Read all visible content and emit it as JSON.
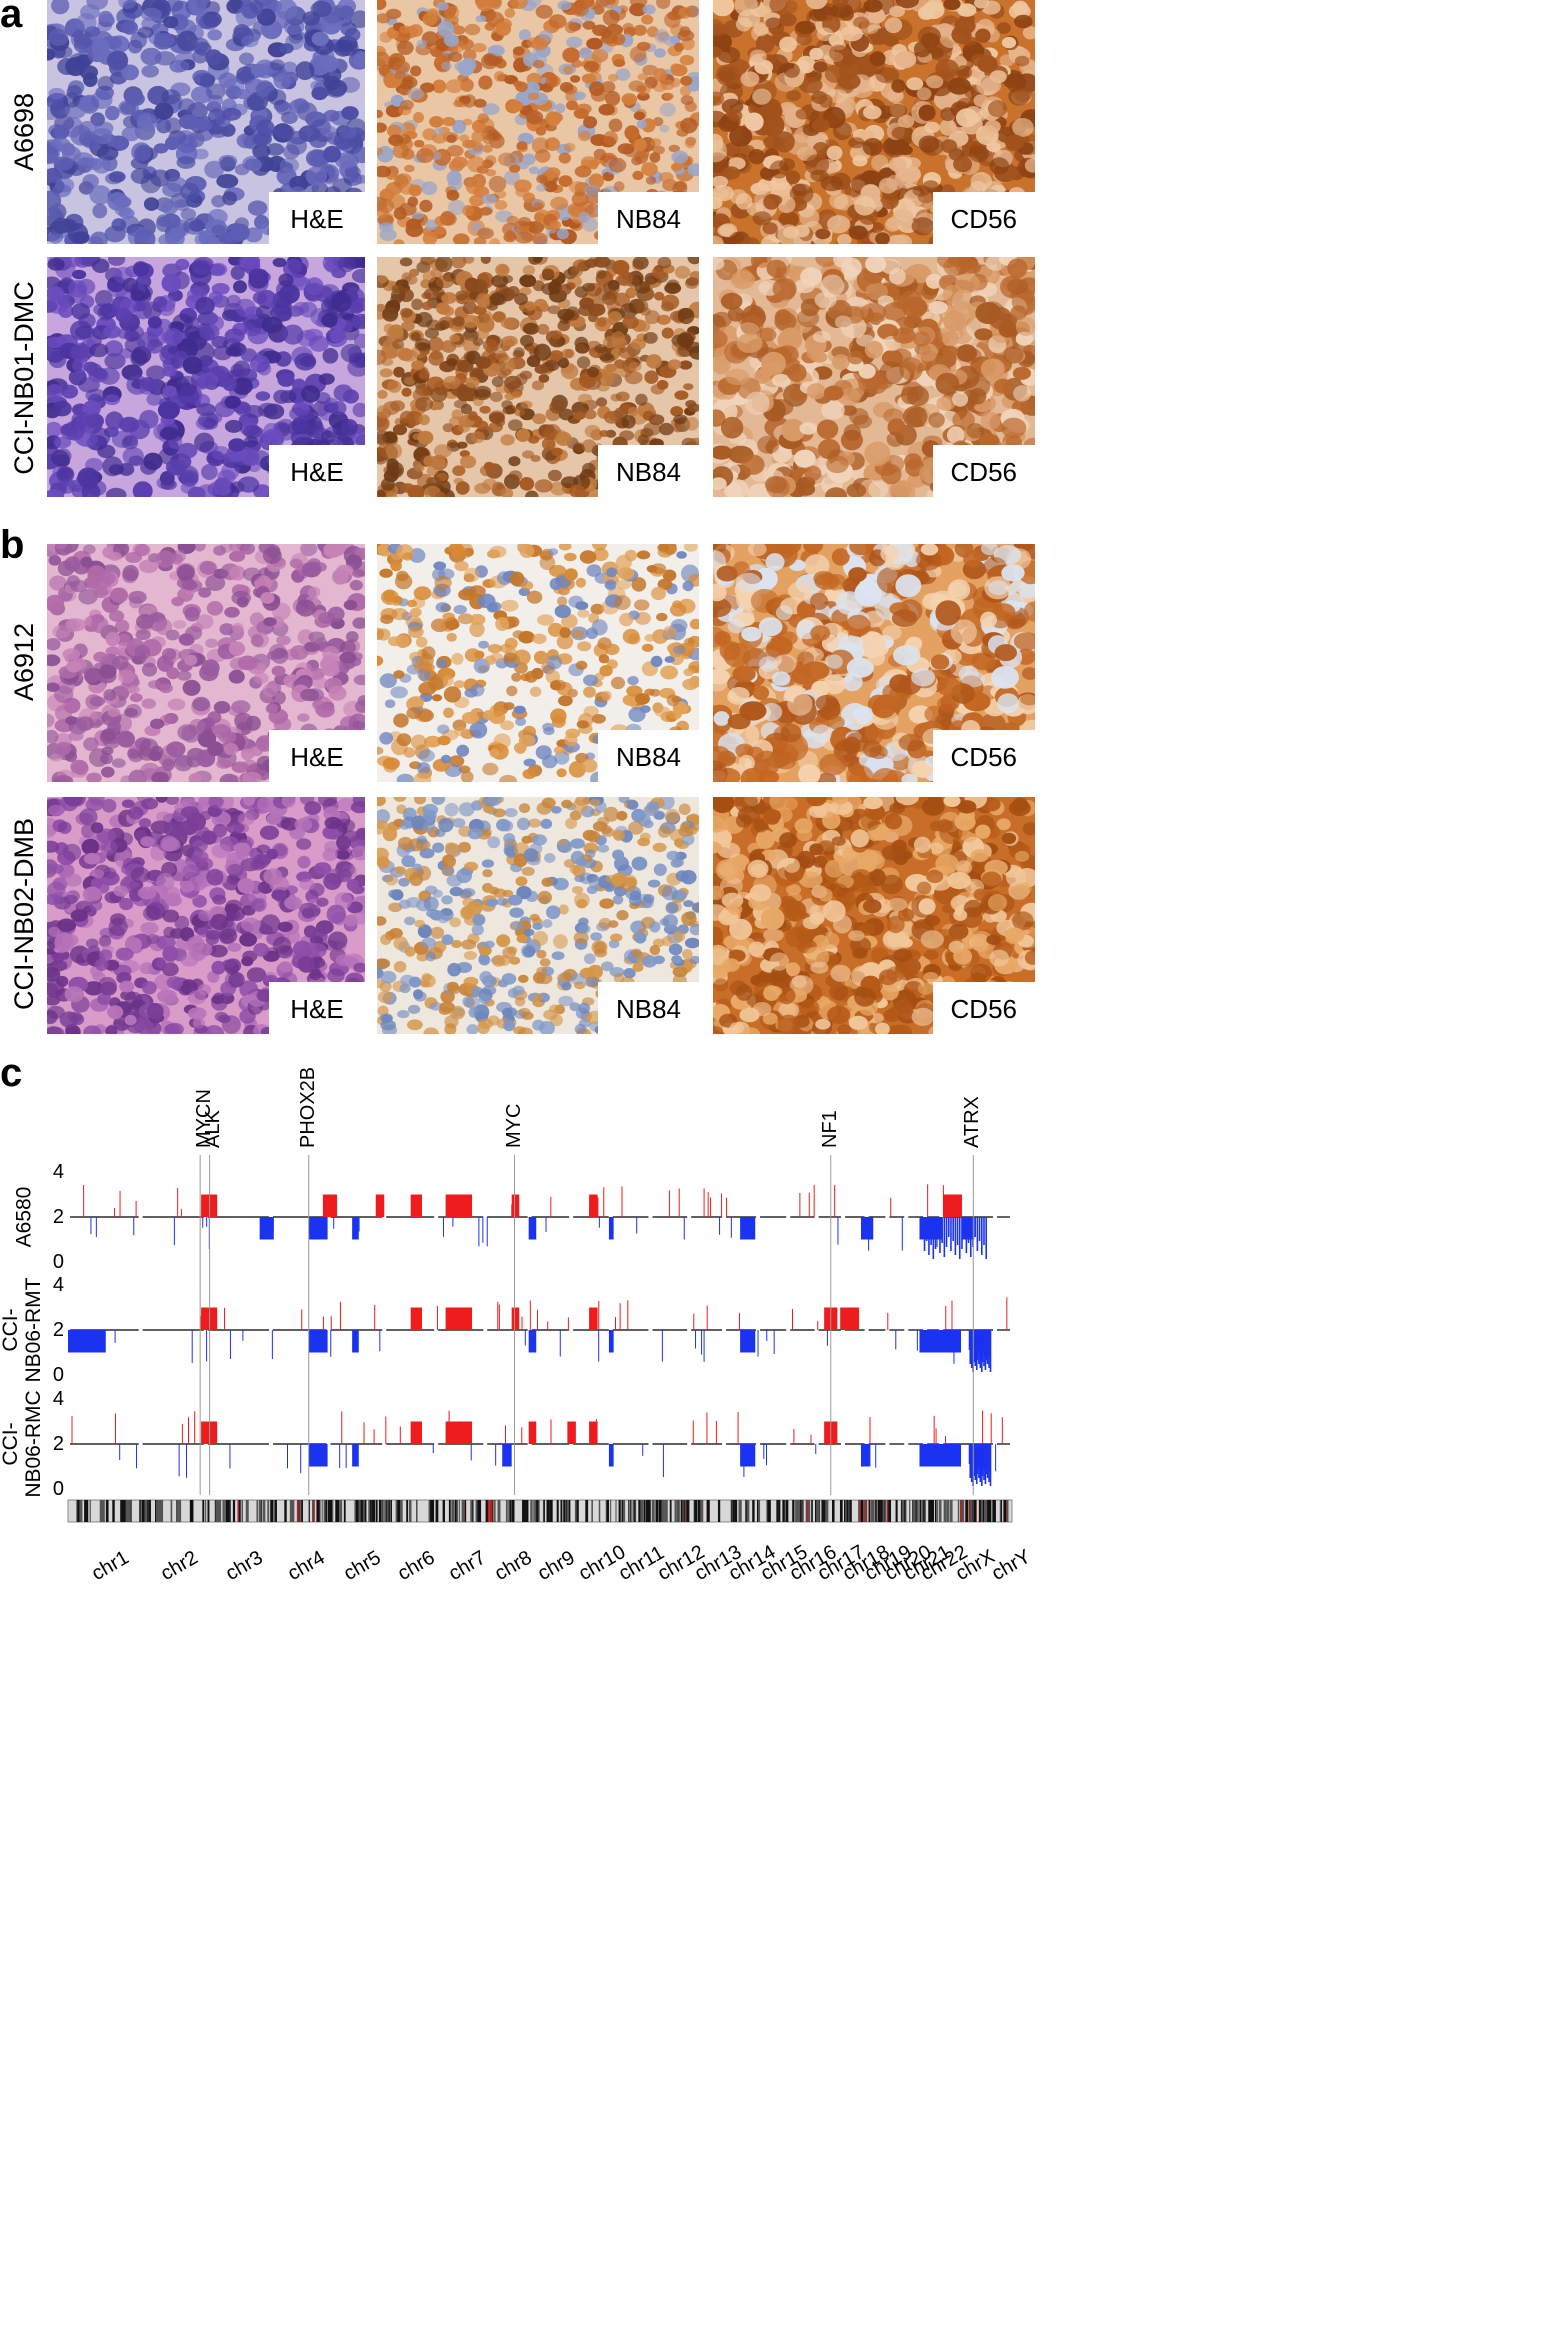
{
  "panels": {
    "a": {
      "letter": "a",
      "rows": [
        {
          "label": "A6698",
          "tiles": [
            {
              "stain": "H&E",
              "style": "he_blue"
            },
            {
              "stain": "NB84",
              "style": "ihc_medium"
            },
            {
              "stain": "CD56",
              "style": "ihc_dark"
            }
          ]
        },
        {
          "label": "CCI-NB01-DMC",
          "tiles": [
            {
              "stain": "H&E",
              "style": "he_violet"
            },
            {
              "stain": "NB84",
              "style": "ihc_streaky"
            },
            {
              "stain": "CD56",
              "style": "ihc_membrane"
            }
          ]
        }
      ]
    },
    "b": {
      "letter": "b",
      "rows": [
        {
          "label": "A6912",
          "tiles": [
            {
              "stain": "H&E",
              "style": "he_pink"
            },
            {
              "stain": "NB84",
              "style": "ihc_sparse"
            },
            {
              "stain": "CD56",
              "style": "ihc_bright"
            }
          ]
        },
        {
          "label": "CCI-NB02-DMB",
          "tiles": [
            {
              "stain": "H&E",
              "style": "he_pinkdense"
            },
            {
              "stain": "NB84",
              "style": "ihc_light"
            },
            {
              "stain": "CD56",
              "style": "ihc_orange"
            }
          ]
        }
      ]
    },
    "c": {
      "letter": "c",
      "genes": [
        "MYCN",
        "ALK",
        "PHOX2B",
        "MYC",
        "NF1",
        "ATRX"
      ]
    }
  },
  "chart_data": {
    "type": "bar",
    "title": "",
    "ylabel": "",
    "xlabel": "",
    "ylim": [
      0,
      4
    ],
    "yticks": [
      0,
      2,
      4
    ],
    "baseline": 2,
    "colors": {
      "gain": "#ee1c1c",
      "loss": "#1a33f0",
      "baseline": "#000000"
    },
    "categories": [
      "chr1",
      "chr2",
      "chr3",
      "chr4",
      "chr5",
      "chr6",
      "chr7",
      "chr8",
      "chr9",
      "chr10",
      "chr11",
      "chr12",
      "chr13",
      "chr14",
      "chr15",
      "chr16",
      "chr17",
      "chr18",
      "chr19",
      "chr20",
      "chr21",
      "chr22",
      "chrX",
      "chrY"
    ],
    "series": [
      {
        "name": "A6580",
        "segments": [
          [
            0.141,
            0.158,
            3
          ],
          [
            0.203,
            0.218,
            1
          ],
          [
            0.255,
            0.275,
            1
          ],
          [
            0.27,
            0.285,
            3
          ],
          [
            0.301,
            0.308,
            1
          ],
          [
            0.326,
            0.335,
            3
          ],
          [
            0.363,
            0.375,
            3
          ],
          [
            0.4,
            0.428,
            3
          ],
          [
            0.47,
            0.478,
            3
          ],
          [
            0.488,
            0.496,
            1
          ],
          [
            0.552,
            0.561,
            3
          ],
          [
            0.573,
            0.578,
            1
          ],
          [
            0.712,
            0.728,
            1
          ],
          [
            0.84,
            0.853,
            1
          ],
          [
            0.902,
            0.926,
            1
          ],
          [
            0.927,
            0.947,
            3
          ],
          [
            0.947,
            0.96,
            1
          ]
        ],
        "dense_gain": [],
        "dense_loss": [
          [
            0.905,
            0.975
          ]
        ]
      },
      {
        "name": "CCI-NB06-RMT",
        "segments": [
          [
            0.0,
            0.04,
            1
          ],
          [
            0.141,
            0.158,
            3
          ],
          [
            0.255,
            0.275,
            1
          ],
          [
            0.301,
            0.308,
            1
          ],
          [
            0.363,
            0.375,
            3
          ],
          [
            0.4,
            0.428,
            3
          ],
          [
            0.47,
            0.478,
            3
          ],
          [
            0.488,
            0.496,
            1
          ],
          [
            0.552,
            0.561,
            3
          ],
          [
            0.573,
            0.578,
            1
          ],
          [
            0.712,
            0.728,
            1
          ],
          [
            0.801,
            0.815,
            3
          ],
          [
            0.818,
            0.838,
            3
          ],
          [
            0.902,
            0.946,
            1
          ],
          [
            0.955,
            0.975,
            1
          ]
        ],
        "dense_gain": [],
        "dense_loss": [
          [
            0.955,
            0.978
          ]
        ]
      },
      {
        "name": "CCI-NB06-RMC",
        "segments": [
          [
            0.141,
            0.158,
            3
          ],
          [
            0.255,
            0.275,
            1
          ],
          [
            0.301,
            0.308,
            1
          ],
          [
            0.363,
            0.375,
            3
          ],
          [
            0.4,
            0.428,
            3
          ],
          [
            0.46,
            0.47,
            1
          ],
          [
            0.488,
            0.496,
            3
          ],
          [
            0.529,
            0.538,
            3
          ],
          [
            0.552,
            0.561,
            3
          ],
          [
            0.573,
            0.578,
            1
          ],
          [
            0.712,
            0.728,
            1
          ],
          [
            0.801,
            0.815,
            3
          ],
          [
            0.84,
            0.85,
            1
          ],
          [
            0.902,
            0.946,
            1
          ],
          [
            0.955,
            0.975,
            1
          ]
        ],
        "dense_gain": [],
        "dense_loss": [
          [
            0.955,
            0.978
          ]
        ]
      }
    ]
  }
}
